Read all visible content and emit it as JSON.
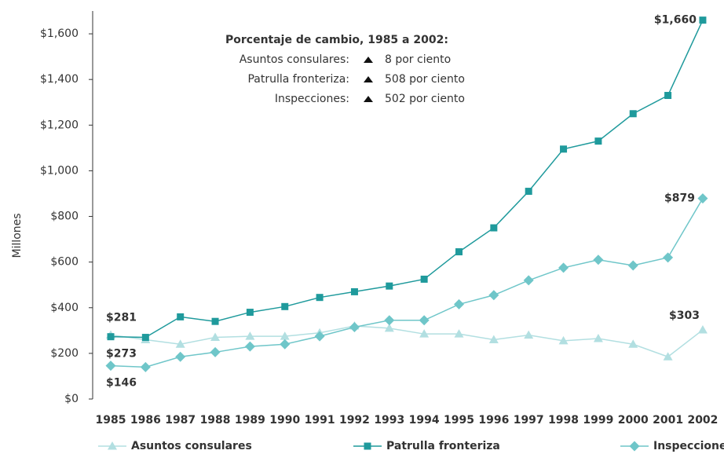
{
  "chart_data": {
    "type": "line",
    "y_label": "Millones",
    "categories": [
      "1985",
      "1986",
      "1987",
      "1988",
      "1989",
      "1990",
      "1991",
      "1992",
      "1993",
      "1994",
      "1995",
      "1996",
      "1997",
      "1998",
      "1999",
      "2000",
      "2001",
      "2002"
    ],
    "ylim": [
      0,
      1700
    ],
    "yticks": [
      {
        "value": 0,
        "label": "$0"
      },
      {
        "value": 200,
        "label": "$200"
      },
      {
        "value": 400,
        "label": "$400"
      },
      {
        "value": 600,
        "label": "$600"
      },
      {
        "value": 800,
        "label": "$800"
      },
      {
        "value": 1000,
        "label": "$1,000"
      },
      {
        "value": 1200,
        "label": "$1,200"
      },
      {
        "value": 1400,
        "label": "$1,400"
      },
      {
        "value": 1600,
        "label": "$1,600"
      }
    ],
    "series": [
      {
        "name": "Asuntos consulares",
        "color": "#b2dfe1",
        "marker": "triangle",
        "values": [
          281,
          260,
          240,
          270,
          275,
          275,
          290,
          320,
          310,
          285,
          285,
          260,
          280,
          255,
          265,
          240,
          185,
          303
        ],
        "value_labels": [
          "$281",
          null,
          null,
          null,
          null,
          null,
          null,
          null,
          null,
          null,
          null,
          null,
          null,
          null,
          null,
          null,
          null,
          "$303"
        ]
      },
      {
        "name": "Patrulla fronteriza",
        "color": "#1f9a9c",
        "marker": "square",
        "values": [
          273,
          270,
          360,
          340,
          380,
          405,
          445,
          470,
          495,
          525,
          645,
          750,
          910,
          1095,
          1130,
          1250,
          1330,
          1660
        ],
        "value_labels": [
          "$273",
          null,
          null,
          null,
          null,
          null,
          null,
          null,
          null,
          null,
          null,
          null,
          null,
          null,
          null,
          null,
          null,
          "$1,660"
        ]
      },
      {
        "name": "Inspecciones",
        "color": "#6fc6c9",
        "marker": "diamond",
        "values": [
          146,
          140,
          185,
          205,
          230,
          240,
          275,
          315,
          345,
          345,
          415,
          455,
          520,
          575,
          610,
          585,
          620,
          879
        ],
        "value_labels": [
          "$146",
          null,
          null,
          null,
          null,
          null,
          null,
          null,
          null,
          null,
          null,
          null,
          null,
          null,
          null,
          null,
          null,
          "$879"
        ]
      }
    ],
    "annotation": {
      "title": "Porcentaje de cambio, 1985 a 2002:",
      "rows": [
        {
          "label": "Asuntos consulares:",
          "value": "8 por ciento"
        },
        {
          "label": "Patrulla fronteriza:",
          "value": "508 por ciento"
        },
        {
          "label": "Inspecciones:",
          "value": "502 por ciento"
        }
      ]
    }
  }
}
